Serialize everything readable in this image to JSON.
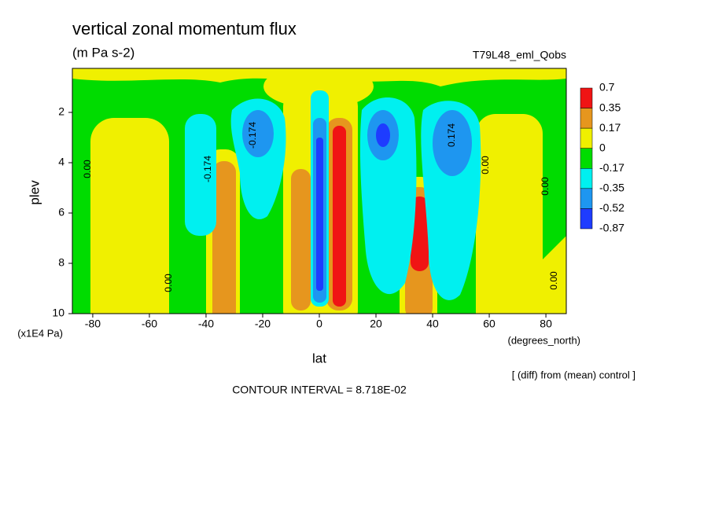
{
  "chart_data": {
    "type": "contour",
    "title": "vertical zonal momentum flux",
    "subtitle": "(m Pa s-2)",
    "run_label": "T79L48_eml_Qobs",
    "x_label": "lat",
    "x_unit": "(degrees_north)",
    "y_label": "plev",
    "y_unit": "(x1E4 Pa)",
    "xlim": [
      -87.2,
      87.2
    ],
    "xticks": [
      -80,
      -60,
      -40,
      -20,
      0,
      20,
      40,
      60,
      80
    ],
    "ylim": [
      0.25,
      10
    ],
    "yticks": [
      2,
      4,
      6,
      8,
      10
    ],
    "levels": [
      0.7,
      0.35,
      0.17,
      0,
      -0.17,
      -0.35,
      -0.52,
      -0.87
    ],
    "colors": [
      "#f01414",
      "#e6961e",
      "#f0f000",
      "#00dc00",
      "#00f0f0",
      "#1e96f0",
      "#1e3cff"
    ],
    "contour_labels": [
      "0.00",
      "0.00",
      "0.00",
      "0.00",
      "0.00",
      "-0.174",
      "0.174",
      "-0.174"
    ],
    "note": "[ (diff) from (mean) control ]",
    "contour_interval": "CONTOUR INTERVAL = 8.718E-02"
  }
}
